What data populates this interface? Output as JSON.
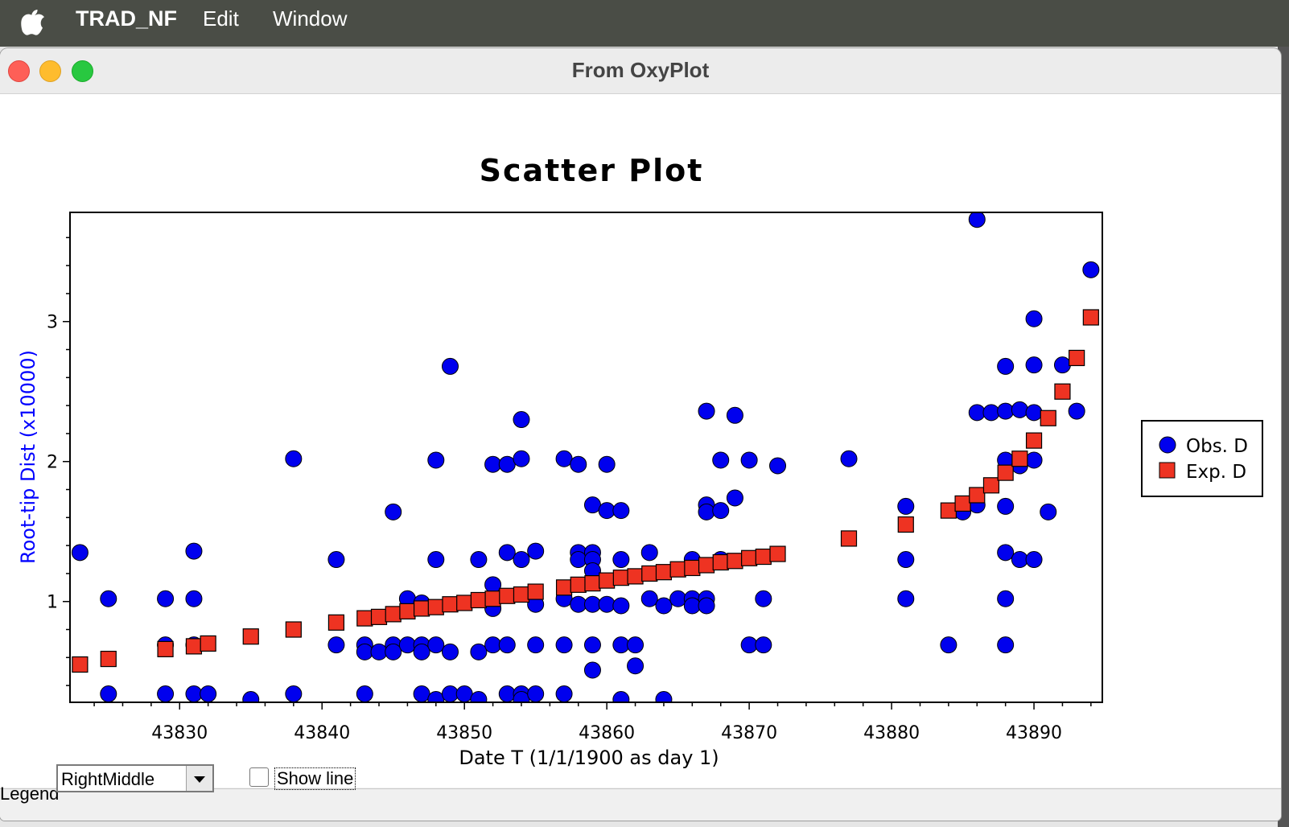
{
  "menubar": {
    "app": "TRAD_NF",
    "items": [
      "Edit",
      "Window"
    ]
  },
  "window": {
    "title": "From OxyPlot"
  },
  "controls": {
    "legend_label": "Legend",
    "legend_position": "RightMiddle",
    "show_line_label": "Show line",
    "show_line_checked": false
  },
  "chart_data": {
    "type": "scatter",
    "title": "Scatter Plot",
    "xlabel": "Date T (1/1/1900 as day 1)",
    "ylabel": "Root-tip Dist (x10000)",
    "xlim": [
      43822.3,
      43894.8
    ],
    "ylim": [
      0.28,
      3.78
    ],
    "xticks": [
      43830,
      43840,
      43850,
      43860,
      43870,
      43880,
      43890
    ],
    "yticks": [
      1,
      2,
      3
    ],
    "legend_position": "right-middle",
    "colors": {
      "obs": "#0000ee",
      "exp": "#ee3322",
      "ylabel": "#0000ff"
    },
    "series": [
      {
        "name": "Obs. D",
        "marker": "circle",
        "color": "#0000ee",
        "points": [
          [
            43823,
            1.35
          ],
          [
            43825,
            1.02
          ],
          [
            43825,
            0.34
          ],
          [
            43829,
            1.02
          ],
          [
            43829,
            0.69
          ],
          [
            43829,
            0.34
          ],
          [
            43831,
            1.36
          ],
          [
            43831,
            1.02
          ],
          [
            43831,
            0.69
          ],
          [
            43831,
            0.34
          ],
          [
            43832,
            0.34
          ],
          [
            43835,
            0.3
          ],
          [
            43838,
            2.02
          ],
          [
            43838,
            0.34
          ],
          [
            43841,
            1.3
          ],
          [
            43841,
            0.69
          ],
          [
            43843,
            0.69
          ],
          [
            43843,
            0.64
          ],
          [
            43843,
            0.34
          ],
          [
            43844,
            0.64
          ],
          [
            43845,
            1.64
          ],
          [
            43845,
            0.69
          ],
          [
            43845,
            0.64
          ],
          [
            43846,
            1.02
          ],
          [
            43846,
            0.69
          ],
          [
            43847,
            0.99
          ],
          [
            43847,
            0.69
          ],
          [
            43847,
            0.64
          ],
          [
            43847,
            0.34
          ],
          [
            43848,
            2.01
          ],
          [
            43848,
            1.3
          ],
          [
            43848,
            0.69
          ],
          [
            43848,
            0.3
          ],
          [
            43849,
            2.68
          ],
          [
            43849,
            0.64
          ],
          [
            43849,
            0.34
          ],
          [
            43850,
            0.34
          ],
          [
            43851,
            1.3
          ],
          [
            43851,
            0.64
          ],
          [
            43851,
            0.3
          ],
          [
            43852,
            1.98
          ],
          [
            43852,
            1.12
          ],
          [
            43852,
            0.95
          ],
          [
            43852,
            0.69
          ],
          [
            43853,
            1.98
          ],
          [
            43853,
            1.35
          ],
          [
            43853,
            0.69
          ],
          [
            43853,
            0.34
          ],
          [
            43854,
            2.3
          ],
          [
            43854,
            2.02
          ],
          [
            43854,
            1.3
          ],
          [
            43854,
            0.34
          ],
          [
            43854,
            0.3
          ],
          [
            43855,
            1.36
          ],
          [
            43855,
            0.98
          ],
          [
            43855,
            0.69
          ],
          [
            43855,
            0.34
          ],
          [
            43857,
            2.02
          ],
          [
            43857,
            1.02
          ],
          [
            43857,
            0.69
          ],
          [
            43857,
            0.34
          ],
          [
            43858,
            1.98
          ],
          [
            43858,
            1.35
          ],
          [
            43858,
            1.3
          ],
          [
            43858,
            0.98
          ],
          [
            43859,
            1.69
          ],
          [
            43859,
            1.35
          ],
          [
            43859,
            1.3
          ],
          [
            43859,
            1.22
          ],
          [
            43859,
            0.98
          ],
          [
            43859,
            0.69
          ],
          [
            43859,
            0.51
          ],
          [
            43860,
            1.98
          ],
          [
            43860,
            1.65
          ],
          [
            43860,
            0.98
          ],
          [
            43861,
            1.65
          ],
          [
            43861,
            1.3
          ],
          [
            43861,
            0.97
          ],
          [
            43861,
            0.69
          ],
          [
            43861,
            0.3
          ],
          [
            43862,
            0.69
          ],
          [
            43862,
            0.54
          ],
          [
            43863,
            1.35
          ],
          [
            43863,
            1.02
          ],
          [
            43864,
            0.97
          ],
          [
            43864,
            0.3
          ],
          [
            43865,
            1.02
          ],
          [
            43866,
            1.3
          ],
          [
            43866,
            1.02
          ],
          [
            43866,
            0.97
          ],
          [
            43867,
            2.36
          ],
          [
            43867,
            1.69
          ],
          [
            43867,
            1.64
          ],
          [
            43867,
            1.02
          ],
          [
            43867,
            0.97
          ],
          [
            43868,
            2.01
          ],
          [
            43868,
            1.65
          ],
          [
            43868,
            1.3
          ],
          [
            43869,
            2.33
          ],
          [
            43869,
            1.74
          ],
          [
            43870,
            2.01
          ],
          [
            43870,
            0.69
          ],
          [
            43871,
            1.02
          ],
          [
            43871,
            0.69
          ],
          [
            43872,
            1.97
          ],
          [
            43877,
            2.02
          ],
          [
            43881,
            1.68
          ],
          [
            43881,
            1.3
          ],
          [
            43881,
            1.02
          ],
          [
            43884,
            0.69
          ],
          [
            43885,
            1.64
          ],
          [
            43886,
            3.73
          ],
          [
            43886,
            2.35
          ],
          [
            43886,
            1.69
          ],
          [
            43887,
            2.35
          ],
          [
            43888,
            2.68
          ],
          [
            43888,
            2.36
          ],
          [
            43888,
            2.01
          ],
          [
            43888,
            1.68
          ],
          [
            43888,
            1.35
          ],
          [
            43888,
            1.02
          ],
          [
            43888,
            0.69
          ],
          [
            43889,
            2.37
          ],
          [
            43889,
            1.97
          ],
          [
            43889,
            1.3
          ],
          [
            43890,
            3.02
          ],
          [
            43890,
            2.69
          ],
          [
            43890,
            2.35
          ],
          [
            43890,
            2.01
          ],
          [
            43890,
            1.3
          ],
          [
            43891,
            1.64
          ],
          [
            43892,
            2.69
          ],
          [
            43893,
            2.36
          ],
          [
            43894,
            3.37
          ]
        ]
      },
      {
        "name": "Exp. D",
        "marker": "square",
        "color": "#ee3322",
        "points": [
          [
            43823,
            0.55
          ],
          [
            43825,
            0.59
          ],
          [
            43829,
            0.66
          ],
          [
            43831,
            0.68
          ],
          [
            43832,
            0.7
          ],
          [
            43835,
            0.75
          ],
          [
            43838,
            0.8
          ],
          [
            43841,
            0.85
          ],
          [
            43843,
            0.88
          ],
          [
            43844,
            0.89
          ],
          [
            43845,
            0.91
          ],
          [
            43846,
            0.93
          ],
          [
            43847,
            0.95
          ],
          [
            43848,
            0.96
          ],
          [
            43849,
            0.98
          ],
          [
            43850,
            0.99
          ],
          [
            43851,
            1.01
          ],
          [
            43852,
            1.02
          ],
          [
            43853,
            1.04
          ],
          [
            43854,
            1.05
          ],
          [
            43855,
            1.07
          ],
          [
            43857,
            1.1
          ],
          [
            43858,
            1.12
          ],
          [
            43859,
            1.13
          ],
          [
            43860,
            1.15
          ],
          [
            43861,
            1.17
          ],
          [
            43862,
            1.18
          ],
          [
            43863,
            1.2
          ],
          [
            43864,
            1.21
          ],
          [
            43865,
            1.23
          ],
          [
            43866,
            1.24
          ],
          [
            43867,
            1.26
          ],
          [
            43868,
            1.28
          ],
          [
            43869,
            1.29
          ],
          [
            43870,
            1.31
          ],
          [
            43871,
            1.32
          ],
          [
            43872,
            1.34
          ],
          [
            43877,
            1.45
          ],
          [
            43881,
            1.55
          ],
          [
            43884,
            1.65
          ],
          [
            43885,
            1.7
          ],
          [
            43886,
            1.76
          ],
          [
            43887,
            1.83
          ],
          [
            43888,
            1.92
          ],
          [
            43889,
            2.02
          ],
          [
            43890,
            2.15
          ],
          [
            43891,
            2.31
          ],
          [
            43892,
            2.5
          ],
          [
            43893,
            2.74
          ],
          [
            43894,
            3.03
          ]
        ]
      }
    ]
  }
}
